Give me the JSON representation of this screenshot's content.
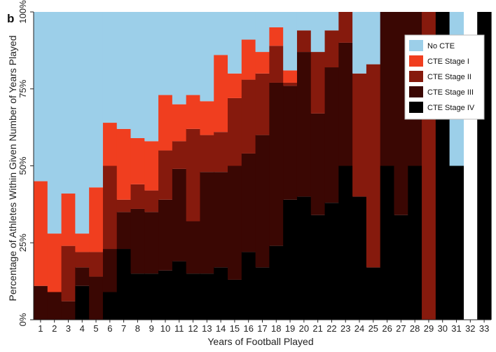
{
  "panel_label": "b",
  "colors": {
    "No CTE": "#9ccfe9",
    "CTE Stage I": "#f03e1f",
    "CTE Stage II": "#861a0d",
    "CTE Stage III": "#3a0703",
    "CTE Stage IV": "#000000",
    "No data": "#ffffff"
  },
  "chart_data": {
    "type": "bar",
    "stacked": true,
    "normalized": true,
    "xlabel": "Years of Football Played",
    "ylabel": "Percentage of Athletes Within Given Number of Years Played",
    "ylim": [
      0,
      100
    ],
    "yticks": [
      "0%",
      "25%",
      "50%",
      "75%",
      "100%"
    ],
    "grid": false,
    "legend_position": "top-right",
    "categories": [
      "1",
      "2",
      "3",
      "4",
      "5",
      "6",
      "7",
      "8",
      "9",
      "10",
      "11",
      "12",
      "13",
      "14",
      "15",
      "16",
      "17",
      "18",
      "19",
      "20",
      "21",
      "22",
      "23",
      "24",
      "25",
      "26",
      "27",
      "28",
      "29",
      "30",
      "31",
      "32",
      "33"
    ],
    "series": [
      {
        "name": "CTE Stage IV",
        "values": [
          0,
          0,
          0,
          11,
          0,
          9,
          23,
          15,
          15,
          16,
          19,
          15,
          15,
          17,
          13,
          22,
          17,
          24,
          39,
          40,
          34,
          38,
          50,
          40,
          17,
          50,
          34,
          50,
          0,
          100,
          50,
          0,
          100
        ]
      },
      {
        "name": "CTE Stage III",
        "values": [
          11,
          9,
          6,
          6,
          14,
          14,
          12,
          21,
          20,
          23,
          30,
          17,
          33,
          31,
          37,
          32,
          43,
          53,
          37,
          47,
          33,
          44,
          40,
          0,
          0,
          50,
          66,
          50,
          0,
          0,
          0,
          0,
          0
        ]
      },
      {
        "name": "CTE Stage II",
        "values": [
          0,
          0,
          18,
          5,
          8,
          27,
          4,
          8,
          7,
          16,
          9,
          30,
          12,
          13,
          22,
          24,
          20,
          12,
          1,
          7,
          20,
          12,
          10,
          40,
          66,
          0,
          0,
          0,
          100,
          0,
          0,
          0,
          0
        ]
      },
      {
        "name": "CTE Stage I",
        "values": [
          34,
          19,
          17,
          6,
          21,
          14,
          23,
          15,
          16,
          18,
          12,
          11,
          11,
          25,
          8,
          13,
          7,
          6,
          4,
          0,
          0,
          0,
          0,
          0,
          0,
          0,
          0,
          0,
          0,
          0,
          0,
          0,
          0
        ]
      },
      {
        "name": "No CTE",
        "values": [
          55,
          72,
          59,
          72,
          57,
          36,
          38,
          41,
          42,
          27,
          30,
          27,
          29,
          14,
          20,
          9,
          13,
          5,
          19,
          6,
          13,
          6,
          0,
          20,
          17,
          0,
          0,
          0,
          0,
          0,
          50,
          0,
          0
        ]
      }
    ],
    "no_data_categories": [
      "32"
    ]
  }
}
